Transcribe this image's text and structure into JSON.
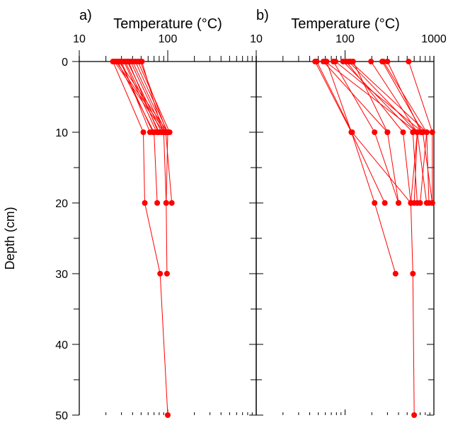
{
  "chart_data": [
    {
      "type": "line",
      "panel_label": "a)",
      "xlabel": "Temperature (°C)",
      "ylabel": "Depth (cm)",
      "x_scale": "log",
      "xlim": [
        10,
        1000
      ],
      "ylim": [
        0,
        50
      ],
      "y_inverted": true,
      "x_tick_labels": [
        "10",
        "100"
      ],
      "y_tick_labels": [
        "0",
        "10",
        "20",
        "30",
        "40",
        "50"
      ],
      "color": "#ff0000",
      "series": [
        {
          "depth": [
            0,
            10,
            20,
            30,
            50
          ],
          "temperature": [
            24,
            53,
            55,
            82,
            100
          ]
        },
        {
          "depth": [
            0,
            10,
            20,
            30
          ],
          "temperature": [
            25,
            90,
            96,
            98
          ]
        },
        {
          "depth": [
            0,
            10,
            20
          ],
          "temperature": [
            26,
            95,
            111
          ]
        },
        {
          "depth": [
            0,
            10,
            20
          ],
          "temperature": [
            27,
            70,
            76
          ]
        },
        {
          "depth": [
            0,
            10,
            20
          ],
          "temperature": [
            28,
            100,
            96
          ]
        },
        {
          "depth": [
            0,
            10
          ],
          "temperature": [
            29,
            68
          ]
        },
        {
          "depth": [
            0,
            10
          ],
          "temperature": [
            30,
            63
          ]
        },
        {
          "depth": [
            0,
            10
          ],
          "temperature": [
            32,
            75
          ]
        },
        {
          "depth": [
            0,
            10
          ],
          "temperature": [
            33,
            80
          ]
        },
        {
          "depth": [
            0,
            10
          ],
          "temperature": [
            35,
            85
          ]
        },
        {
          "depth": [
            0,
            10
          ],
          "temperature": [
            36,
            78
          ]
        },
        {
          "depth": [
            0,
            10
          ],
          "temperature": [
            38,
            90
          ]
        },
        {
          "depth": [
            0,
            10
          ],
          "temperature": [
            40,
            95
          ]
        },
        {
          "depth": [
            0,
            10
          ],
          "temperature": [
            43,
            100
          ]
        },
        {
          "depth": [
            0,
            10
          ],
          "temperature": [
            46,
            105
          ]
        },
        {
          "depth": [
            0,
            10
          ],
          "temperature": [
            49,
            98
          ]
        },
        {
          "depth": [
            0,
            10
          ],
          "temperature": [
            51,
            88
          ]
        }
      ]
    },
    {
      "type": "line",
      "panel_label": "b)",
      "xlabel": "Temperature (°C)",
      "x_scale": "log",
      "xlim": [
        10,
        1000
      ],
      "ylim": [
        0,
        50
      ],
      "y_inverted": true,
      "x_tick_labels": [
        "10",
        "100",
        "1000"
      ],
      "color": "#ff0000",
      "series": [
        {
          "depth": [
            0,
            10,
            20,
            30
          ],
          "temperature": [
            46,
            118,
            215,
            370
          ]
        },
        {
          "depth": [
            0,
            10,
            20,
            30,
            50
          ],
          "temperature": [
            48,
            120,
            550,
            580,
            600
          ]
        },
        {
          "depth": [
            0,
            10
          ],
          "temperature": [
            57,
            300
          ]
        },
        {
          "depth": [
            0,
            10,
            20
          ],
          "temperature": [
            60,
            650,
            550
          ]
        },
        {
          "depth": [
            0,
            10,
            20
          ],
          "temperature": [
            62,
            118,
            280
          ]
        },
        {
          "depth": [
            0,
            10,
            20
          ],
          "temperature": [
            74,
            215,
            400
          ]
        },
        {
          "depth": [
            0,
            10
          ],
          "temperature": [
            78,
            750
          ]
        },
        {
          "depth": [
            0,
            10,
            20
          ],
          "temperature": [
            95,
            580,
            650
          ]
        },
        {
          "depth": [
            0,
            10,
            20
          ],
          "temperature": [
            103,
            450,
            550
          ]
        },
        {
          "depth": [
            0,
            10,
            20
          ],
          "temperature": [
            110,
            650,
            600
          ]
        },
        {
          "depth": [
            0,
            10,
            20
          ],
          "temperature": [
            115,
            830,
            700
          ]
        },
        {
          "depth": [
            0,
            10,
            20
          ],
          "temperature": [
            123,
            300,
            400
          ]
        },
        {
          "depth": [
            0,
            10,
            20
          ],
          "temperature": [
            196,
            650,
            830
          ]
        },
        {
          "depth": [
            0,
            10,
            20
          ],
          "temperature": [
            262,
            750,
            960
          ]
        },
        {
          "depth": [
            0,
            10,
            20
          ],
          "temperature": [
            270,
            830,
            880
          ]
        },
        {
          "depth": [
            0,
            10
          ],
          "temperature": [
            300,
            720
          ]
        },
        {
          "depth": [
            0,
            10,
            20
          ],
          "temperature": [
            520,
            960,
            960
          ]
        }
      ]
    }
  ]
}
